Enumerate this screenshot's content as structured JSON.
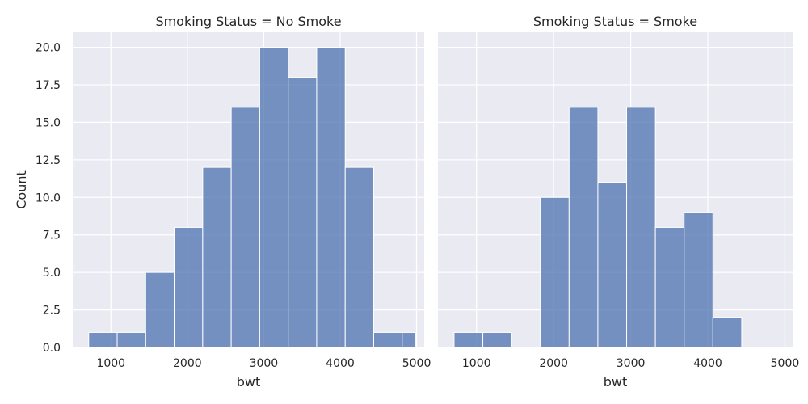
{
  "chart_data": [
    {
      "type": "bar",
      "title": "Smoking Status = No Smoke",
      "xlabel": "bwt",
      "ylabel": "Count",
      "bins": [
        [
          709,
          1082
        ],
        [
          1082,
          1455
        ],
        [
          1455,
          1828
        ],
        [
          1828,
          2201
        ],
        [
          2201,
          2574
        ],
        [
          2574,
          2947
        ],
        [
          2947,
          3320
        ],
        [
          3320,
          3693
        ],
        [
          3693,
          4066
        ],
        [
          4066,
          4439
        ],
        [
          4439,
          4812
        ],
        [
          4812,
          4990
        ]
      ],
      "values": [
        1,
        1,
        5,
        8,
        12,
        16,
        20,
        18,
        20,
        12,
        1,
        1
      ],
      "xlim": [
        500,
        5100
      ],
      "ylim": [
        0,
        21
      ],
      "xticks": [
        1000,
        2000,
        3000,
        4000,
        5000
      ],
      "yticks": [
        0.0,
        2.5,
        5.0,
        7.5,
        10.0,
        12.5,
        15.0,
        17.5,
        20.0
      ],
      "grid": true
    },
    {
      "type": "bar",
      "title": "Smoking Status = Smoke",
      "xlabel": "bwt",
      "ylabel": "",
      "bins": [
        [
          709,
          1082
        ],
        [
          1082,
          1455
        ],
        [
          1455,
          1828
        ],
        [
          1828,
          2201
        ],
        [
          2201,
          2574
        ],
        [
          2574,
          2947
        ],
        [
          2947,
          3320
        ],
        [
          3320,
          3693
        ],
        [
          3693,
          4066
        ],
        [
          4066,
          4439
        ]
      ],
      "values": [
        1,
        1,
        0,
        10,
        16,
        11,
        16,
        8,
        9,
        2
      ],
      "xlim": [
        500,
        5100
      ],
      "ylim": [
        0,
        21
      ],
      "xticks": [
        1000,
        2000,
        3000,
        4000,
        5000
      ],
      "yticks": [],
      "grid": true
    }
  ]
}
